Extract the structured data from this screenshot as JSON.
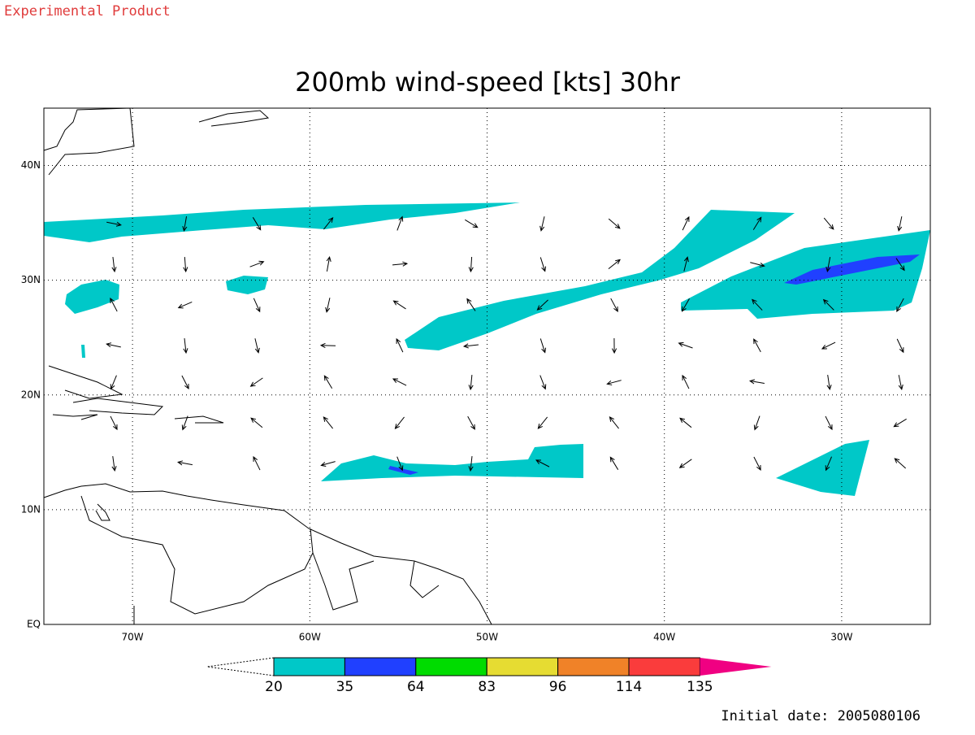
{
  "header": {
    "label": "Experimental Product"
  },
  "title": "200mb wind-speed [kts] 30hr",
  "map": {
    "lonlim": [
      -75,
      -25
    ],
    "latlim": [
      0,
      45
    ],
    "lonticks": [
      {
        "value": -70,
        "label": "70W"
      },
      {
        "value": -60,
        "label": "60W"
      },
      {
        "value": -50,
        "label": "50W"
      },
      {
        "value": -40,
        "label": "40W"
      },
      {
        "value": -30,
        "label": "30W"
      }
    ],
    "latticks": [
      {
        "value": 0,
        "label": "EQ"
      },
      {
        "value": 10,
        "label": "10N"
      },
      {
        "value": 20,
        "label": "20N"
      },
      {
        "value": 30,
        "label": "30N"
      },
      {
        "value": 40,
        "label": "40N"
      }
    ]
  },
  "colorbar": {
    "levels": [
      20,
      35,
      64,
      83,
      96,
      114,
      135
    ],
    "colors": [
      "#00c8c8",
      "#2040ff",
      "#00dc00",
      "#e6dc32",
      "#f08228",
      "#fa3c3c",
      "#f00082"
    ]
  },
  "footer": {
    "label": "Initial date: 2005080106"
  }
}
